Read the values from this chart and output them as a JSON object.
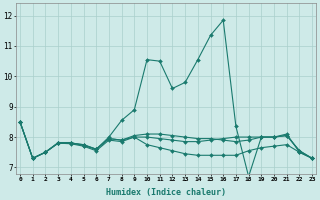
{
  "x": [
    0,
    1,
    2,
    3,
    4,
    5,
    6,
    7,
    8,
    9,
    10,
    11,
    12,
    13,
    14,
    15,
    16,
    17,
    18,
    19,
    20,
    21,
    22,
    23
  ],
  "lines": [
    [
      8.5,
      7.3,
      7.5,
      7.8,
      7.8,
      7.75,
      7.6,
      8.0,
      8.55,
      8.9,
      10.55,
      10.5,
      9.6,
      9.8,
      10.55,
      11.35,
      11.85,
      8.35,
      6.7,
      8.0,
      8.0,
      8.1,
      7.5,
      7.3
    ],
    [
      8.5,
      7.3,
      7.5,
      7.8,
      7.78,
      7.7,
      7.55,
      7.9,
      7.85,
      8.0,
      7.75,
      7.65,
      7.55,
      7.45,
      7.4,
      7.4,
      7.4,
      7.4,
      7.55,
      7.65,
      7.7,
      7.75,
      7.5,
      7.3
    ],
    [
      8.5,
      7.3,
      7.5,
      7.82,
      7.82,
      7.72,
      7.6,
      7.95,
      7.9,
      8.05,
      8.1,
      8.1,
      8.05,
      8.0,
      7.95,
      7.95,
      7.9,
      7.85,
      7.9,
      8.0,
      8.0,
      8.05,
      7.55,
      7.3
    ],
    [
      8.5,
      7.3,
      7.5,
      7.8,
      7.8,
      7.75,
      7.6,
      7.95,
      7.9,
      8.0,
      8.0,
      7.95,
      7.9,
      7.85,
      7.85,
      7.9,
      7.95,
      8.0,
      8.0,
      8.0,
      8.0,
      8.05,
      7.55,
      7.3
    ]
  ],
  "line_color": "#1a7a6e",
  "markersize": 2.0,
  "bg_color": "#ceeae8",
  "grid_color": "#aacfcc",
  "ylabel_ticks": [
    7,
    8,
    9,
    10,
    11,
    12
  ],
  "ylim": [
    6.8,
    12.4
  ],
  "xlim": [
    -0.3,
    23.3
  ],
  "xlabel": "Humidex (Indice chaleur)"
}
